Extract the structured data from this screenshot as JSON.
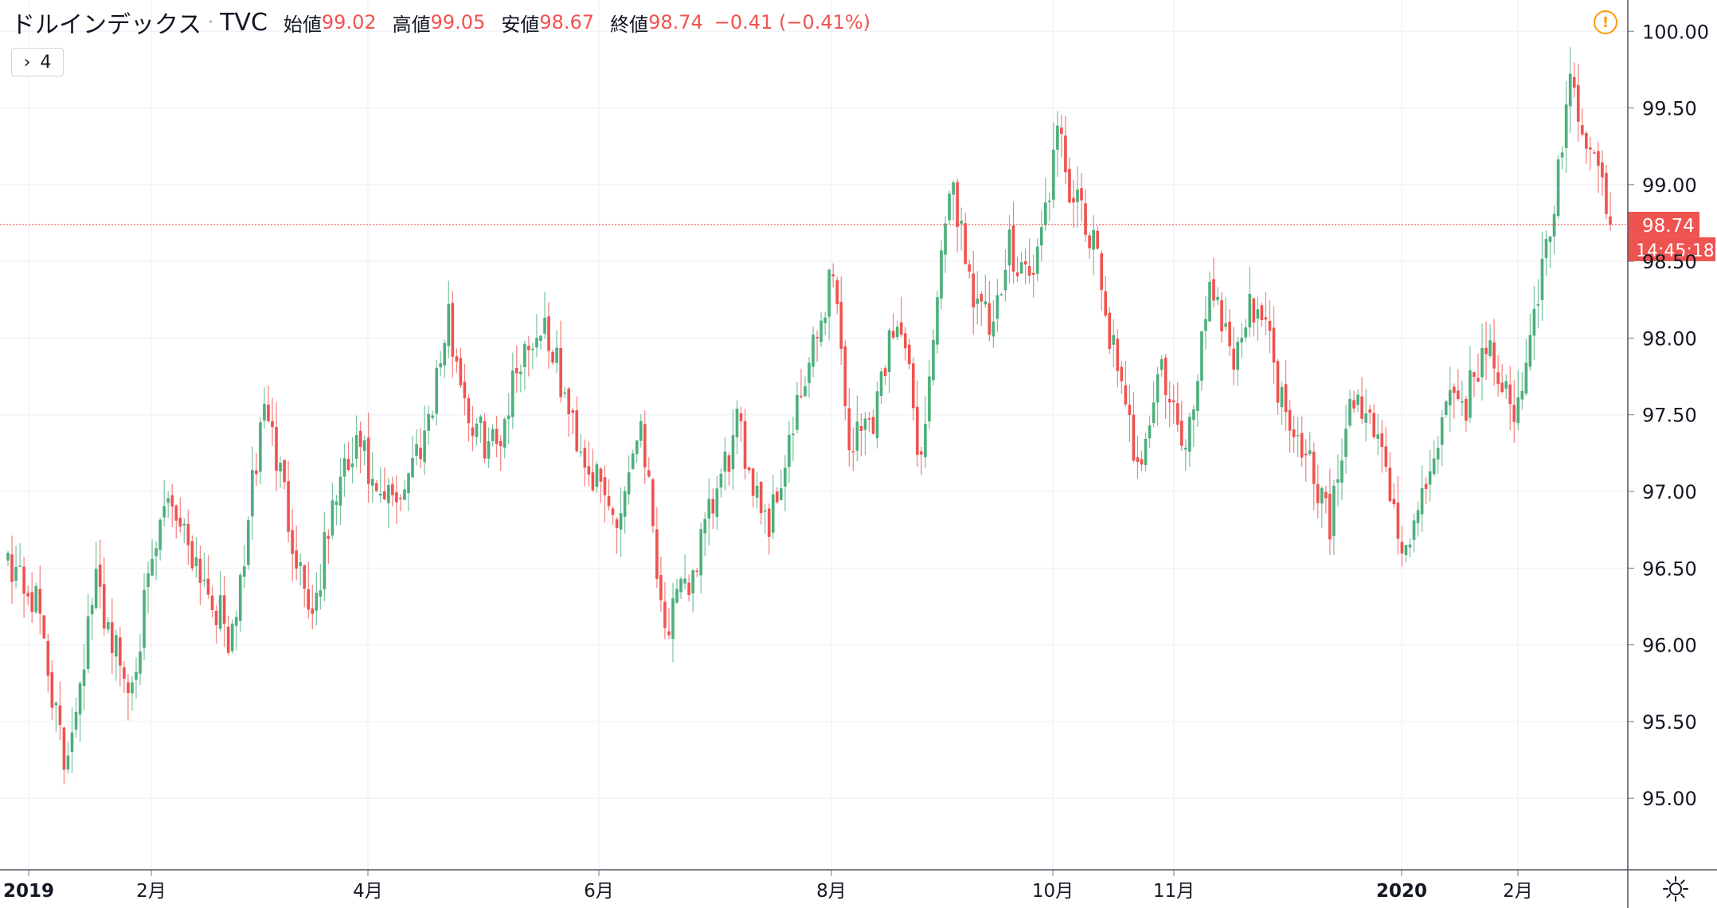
{
  "legend": {
    "symbol": "ドルインデックス",
    "source": "TVC",
    "open_label": "始値",
    "open_value": "99.02",
    "high_label": "高値",
    "high_value": "99.05",
    "low_label": "安値",
    "low_value": "98.67",
    "close_label": "終値",
    "close_value": "98.74",
    "change": "−0.41 (−0.41%)"
  },
  "indicator_toggle": {
    "chevron": "›",
    "count": "4"
  },
  "price_label": "98.74",
  "countdown_label": "14:45:18",
  "colors": {
    "up": "#26a69a",
    "up_bar": "#4caf7d",
    "down": "#ef5350",
    "grid": "#f0f3fa",
    "warning": "#ff9800"
  },
  "chart_data": {
    "type": "candlestick",
    "title": "ドルインデックス · TVC",
    "x_ticks": [
      "2019",
      "2月",
      "4月",
      "6月",
      "8月",
      "10月",
      "11月",
      "2020",
      "2月"
    ],
    "y_ticks": [
      "95.00",
      "95.50",
      "96.00",
      "96.50",
      "97.00",
      "97.50",
      "98.00",
      "98.50",
      "99.00",
      "99.50",
      "100.00"
    ],
    "ylim": [
      94.75,
      100.1
    ],
    "last_price": 98.74,
    "grid": true,
    "keyframes": [
      {
        "t": 0,
        "c": 96.6
      },
      {
        "t": 8,
        "c": 96.2
      },
      {
        "t": 14,
        "c": 95.2
      },
      {
        "t": 22,
        "c": 96.4
      },
      {
        "t": 30,
        "c": 95.7
      },
      {
        "t": 40,
        "c": 97.0
      },
      {
        "t": 48,
        "c": 96.5
      },
      {
        "t": 56,
        "c": 96.0
      },
      {
        "t": 64,
        "c": 97.6
      },
      {
        "t": 72,
        "c": 96.6
      },
      {
        "t": 76,
        "c": 96.2
      },
      {
        "t": 82,
        "c": 97.0
      },
      {
        "t": 88,
        "c": 97.3
      },
      {
        "t": 92,
        "c": 96.9
      },
      {
        "t": 98,
        "c": 97.0
      },
      {
        "t": 104,
        "c": 97.4
      },
      {
        "t": 110,
        "c": 98.1
      },
      {
        "t": 116,
        "c": 97.4
      },
      {
        "t": 122,
        "c": 97.3
      },
      {
        "t": 128,
        "c": 97.9
      },
      {
        "t": 134,
        "c": 98.1
      },
      {
        "t": 140,
        "c": 97.5
      },
      {
        "t": 146,
        "c": 97.1
      },
      {
        "t": 152,
        "c": 96.8
      },
      {
        "t": 158,
        "c": 97.5
      },
      {
        "t": 164,
        "c": 96.1
      },
      {
        "t": 170,
        "c": 96.4
      },
      {
        "t": 176,
        "c": 96.9
      },
      {
        "t": 182,
        "c": 97.4
      },
      {
        "t": 190,
        "c": 96.8
      },
      {
        "t": 196,
        "c": 97.4
      },
      {
        "t": 202,
        "c": 98.0
      },
      {
        "t": 206,
        "c": 98.5
      },
      {
        "t": 210,
        "c": 97.3
      },
      {
        "t": 216,
        "c": 97.5
      },
      {
        "t": 222,
        "c": 98.2
      },
      {
        "t": 228,
        "c": 97.2
      },
      {
        "t": 232,
        "c": 98.3
      },
      {
        "t": 236,
        "c": 99.0
      },
      {
        "t": 240,
        "c": 98.4
      },
      {
        "t": 246,
        "c": 98.0
      },
      {
        "t": 250,
        "c": 98.6
      },
      {
        "t": 256,
        "c": 98.4
      },
      {
        "t": 262,
        "c": 99.3
      },
      {
        "t": 266,
        "c": 98.9
      },
      {
        "t": 272,
        "c": 98.5
      },
      {
        "t": 278,
        "c": 97.6
      },
      {
        "t": 282,
        "c": 97.2
      },
      {
        "t": 288,
        "c": 97.8
      },
      {
        "t": 294,
        "c": 97.2
      },
      {
        "t": 300,
        "c": 98.4
      },
      {
        "t": 306,
        "c": 97.9
      },
      {
        "t": 312,
        "c": 98.3
      },
      {
        "t": 318,
        "c": 97.6
      },
      {
        "t": 324,
        "c": 97.3
      },
      {
        "t": 330,
        "c": 96.8
      },
      {
        "t": 336,
        "c": 97.6
      },
      {
        "t": 342,
        "c": 97.4
      },
      {
        "t": 348,
        "c": 96.6
      },
      {
        "t": 352,
        "c": 96.8
      },
      {
        "t": 358,
        "c": 97.5
      },
      {
        "t": 364,
        "c": 97.6
      },
      {
        "t": 370,
        "c": 98.0
      },
      {
        "t": 376,
        "c": 97.4
      },
      {
        "t": 380,
        "c": 98.0
      },
      {
        "t": 386,
        "c": 98.9
      },
      {
        "t": 390,
        "c": 99.6
      },
      {
        "t": 394,
        "c": 99.3
      },
      {
        "t": 398,
        "c": 98.95
      },
      {
        "t": 400,
        "c": 98.74
      }
    ]
  }
}
